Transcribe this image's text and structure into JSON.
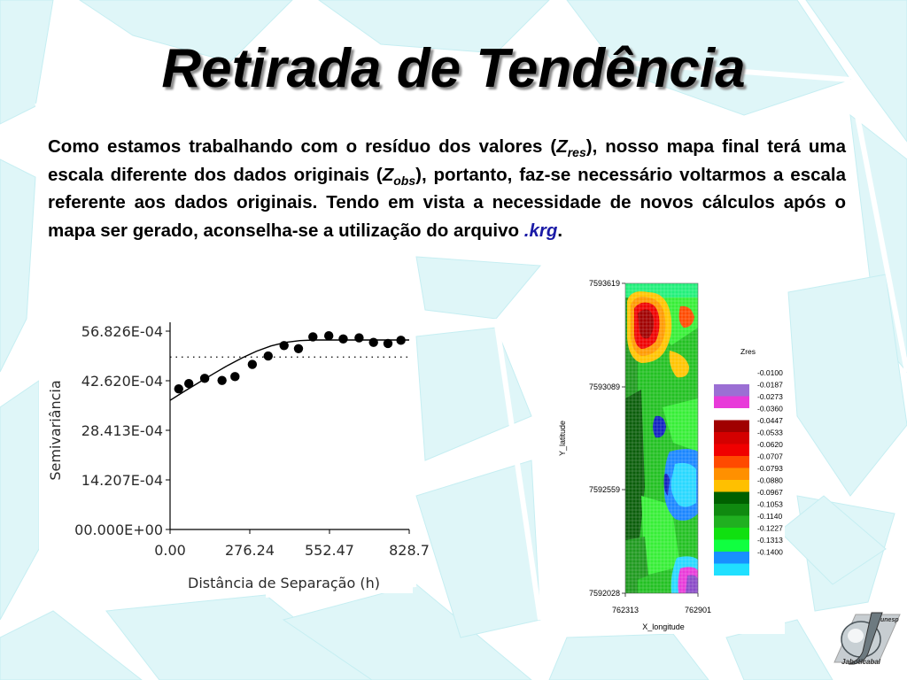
{
  "slide": {
    "title": "Retirada de Tendência",
    "paragraph": {
      "p1": "Como estamos trabalhando com o resíduo dos valores (",
      "z1": "Z",
      "sub1": "res",
      "p2": "), nosso mapa final terá uma escala diferente dos dados originais (",
      "z2": "Z",
      "sub2": "obs",
      "p3": "), portanto, faz-se necessário voltarmos a escala referente aos dados originais. Tendo em vista a necessidade de novos cálculos após o mapa ser gerado, aconselha-se a utilização do arquivo ",
      "ext": ".krg",
      "p4": "."
    },
    "logo": {
      "top_text": "unesp",
      "bottom_text": "Jaboticabal"
    },
    "colors": {
      "background_shards": "#dff6f8",
      "background_lines": "#ffffff",
      "ext_color": "#1a1aa6"
    }
  },
  "chart_data": [
    {
      "type": "scatter",
      "title": "",
      "xlabel": "Distância de Separação (h)",
      "ylabel": "Semivariância",
      "xlim": [
        0,
        828.7
      ],
      "ylim": [
        0,
        0.0056826
      ],
      "x_ticks": [
        0,
        276.24,
        552.47,
        828.7
      ],
      "x_tick_labels": [
        "0.00",
        "276.24",
        "552.47",
        "828.7"
      ],
      "y_ticks": [
        0,
        0.0014207,
        0.0028413,
        0.004262,
        0.0056826
      ],
      "y_tick_labels": [
        "00.000E+00",
        "14.207E-04",
        "28.413E-04",
        "42.620E-04",
        "56.826E-04"
      ],
      "sill": 0.00494,
      "series": [
        {
          "kind": "points",
          "x": [
            30,
            65,
            120,
            180,
            225,
            285,
            340,
            395,
            445,
            495,
            550,
            600,
            655,
            705,
            755,
            800
          ],
          "y": [
            0.00403,
            0.00418,
            0.00433,
            0.00427,
            0.00438,
            0.00473,
            0.00497,
            0.00527,
            0.00518,
            0.00552,
            0.00555,
            0.00546,
            0.00549,
            0.00536,
            0.00533,
            0.00542
          ]
        },
        {
          "kind": "model",
          "x": [
            0,
            50,
            100,
            150,
            200,
            250,
            300,
            350,
            400,
            450,
            500,
            550,
            600,
            650,
            700,
            750,
            800,
            828.7
          ],
          "y": [
            0.0037,
            0.00396,
            0.00421,
            0.00446,
            0.0047,
            0.00492,
            0.00511,
            0.00526,
            0.00536,
            0.00541,
            0.00543,
            0.00543,
            0.00543,
            0.00543,
            0.00543,
            0.00543,
            0.00543,
            0.00543
          ]
        }
      ]
    },
    {
      "type": "heatmap",
      "title": "",
      "xlabel": "X_longitude",
      "ylabel": "Y_latitude",
      "x_tick_labels": [
        "762313",
        "762901"
      ],
      "y_tick_labels": [
        "7593619",
        "7593089",
        "7592559",
        "7592028"
      ],
      "legend_title": "Zres",
      "legend_labels": [
        "-0.0100",
        "-0.0187",
        "-0.0273",
        "-0.0360",
        "-0.0447",
        "-0.0533",
        "-0.0620",
        "-0.0707",
        "-0.0793",
        "-0.0880",
        "-0.0967",
        "-0.1053",
        "-0.1140",
        "-0.1227",
        "-0.1313",
        "-0.1400"
      ],
      "legend_colors": [
        "#9b6fd4",
        "#e83ad9",
        "#ffffff",
        "#a00000",
        "#d40000",
        "#f00000",
        "#ff4a00",
        "#ff9000",
        "#ffc000",
        "#006000",
        "#108a10",
        "#20b020",
        "#10e010",
        "#10ff40",
        "#1890ff",
        "#20e0ff"
      ]
    }
  ]
}
